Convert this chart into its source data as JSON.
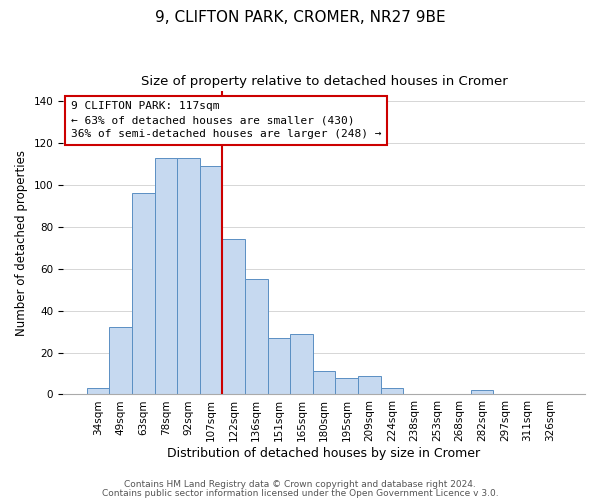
{
  "title": "9, CLIFTON PARK, CROMER, NR27 9BE",
  "subtitle": "Size of property relative to detached houses in Cromer",
  "xlabel": "Distribution of detached houses by size in Cromer",
  "ylabel": "Number of detached properties",
  "bar_labels": [
    "34sqm",
    "49sqm",
    "63sqm",
    "78sqm",
    "92sqm",
    "107sqm",
    "122sqm",
    "136sqm",
    "151sqm",
    "165sqm",
    "180sqm",
    "195sqm",
    "209sqm",
    "224sqm",
    "238sqm",
    "253sqm",
    "268sqm",
    "282sqm",
    "297sqm",
    "311sqm",
    "326sqm"
  ],
  "bar_values": [
    3,
    32,
    96,
    113,
    113,
    109,
    74,
    55,
    27,
    29,
    11,
    8,
    9,
    3,
    0,
    0,
    0,
    2,
    0,
    0,
    0
  ],
  "bar_color": "#c6d9f0",
  "bar_edge_color": "#5a8fc3",
  "vline_x": 6.0,
  "vline_color": "#cc0000",
  "annotation_title": "9 CLIFTON PARK: 117sqm",
  "annotation_line1": "← 63% of detached houses are smaller (430)",
  "annotation_line2": "36% of semi-detached houses are larger (248) →",
  "ylim": [
    0,
    145
  ],
  "yticks": [
    0,
    20,
    40,
    60,
    80,
    100,
    120,
    140
  ],
  "footer1": "Contains HM Land Registry data © Crown copyright and database right 2024.",
  "footer2": "Contains public sector information licensed under the Open Government Licence v 3.0.",
  "title_fontsize": 11,
  "subtitle_fontsize": 9.5,
  "xlabel_fontsize": 9,
  "ylabel_fontsize": 8.5,
  "tick_fontsize": 7.5,
  "annotation_fontsize": 8,
  "footer_fontsize": 6.5
}
